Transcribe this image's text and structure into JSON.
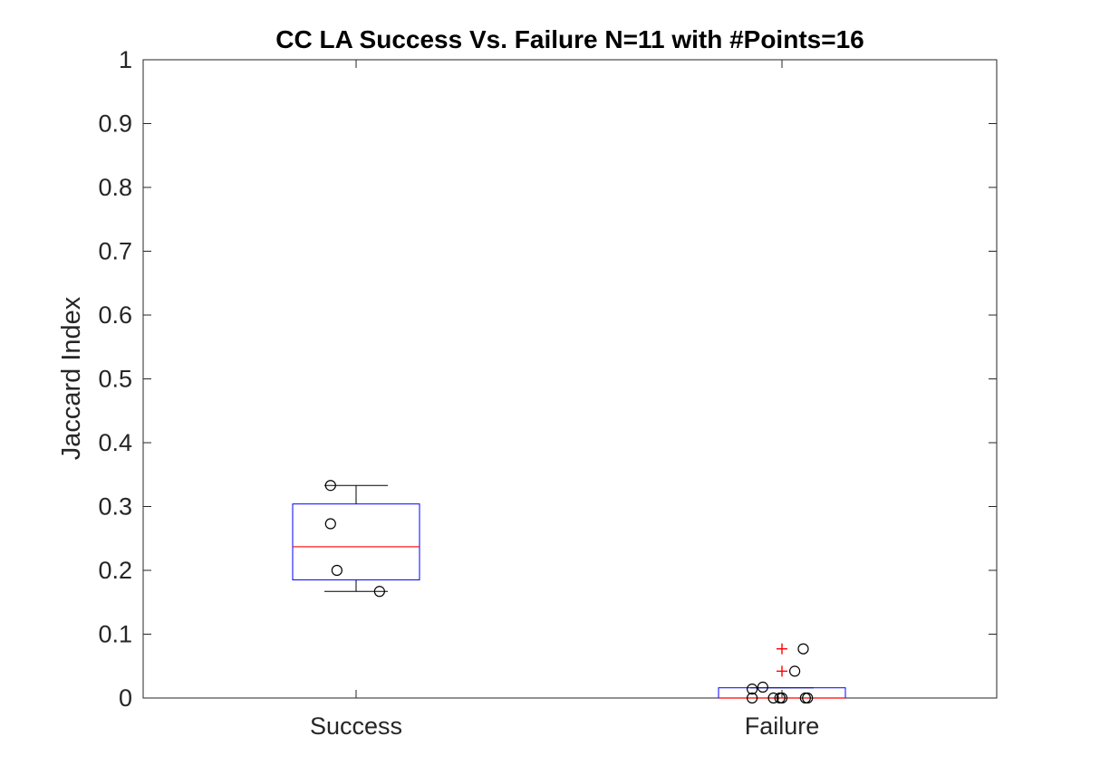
{
  "chart_data": {
    "type": "box",
    "title": "CC LA Success Vs. Failure N=11 with #Points=16",
    "xlabel": "",
    "ylabel": "Jaccard Index",
    "ylim": [
      0,
      1
    ],
    "yticks": [
      "0",
      "0.1",
      "0.2",
      "0.3",
      "0.4",
      "0.5",
      "0.6",
      "0.7",
      "0.8",
      "0.9",
      "1"
    ],
    "categories": [
      "Success",
      "Failure"
    ],
    "grid": false,
    "boxes": [
      {
        "category": "Success",
        "q1": 0.185,
        "median": 0.237,
        "q3": 0.304,
        "whisker_low": 0.167,
        "whisker_high": 0.333,
        "outliers": []
      },
      {
        "category": "Failure",
        "q1": 0,
        "median": 0,
        "q3": 0.016,
        "whisker_low": 0,
        "whisker_high": 0.016,
        "outliers": [
          0.077,
          0.042
        ]
      }
    ],
    "points": [
      {
        "category": "Success",
        "values": [
          0.333,
          0.273,
          0.2,
          0.167
        ],
        "jitter": [
          -0.12,
          -0.12,
          -0.09,
          0.11
        ]
      },
      {
        "category": "Failure",
        "values": [
          0.077,
          0.042,
          0.017,
          0.014,
          0,
          0,
          0,
          0,
          0,
          0
        ],
        "jitter": [
          0.1,
          0.06,
          -0.09,
          -0.14,
          -0.14,
          -0.04,
          0.0,
          -0.01,
          0.11,
          0.12
        ]
      }
    ],
    "colors": {
      "box": "#0000ff",
      "median": "#ff0000",
      "whisker": "#000000",
      "outlier": "#ff0000",
      "points": "#000000",
      "axes": "#262626"
    }
  }
}
